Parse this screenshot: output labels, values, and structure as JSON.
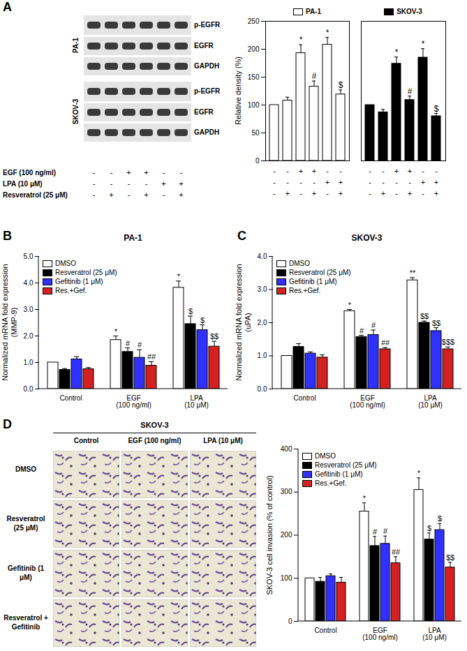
{
  "figure": {
    "panel_labels": [
      "A",
      "B",
      "C",
      "D"
    ],
    "blot": {
      "cell_lines": [
        {
          "name": "PA-1",
          "rows": [
            "p-EGFR",
            "EGFR",
            "GAPDH"
          ]
        },
        {
          "name": "SKOV-3",
          "rows": [
            "p-EGFR",
            "EGFR",
            "GAPDH"
          ]
        }
      ]
    },
    "micrographs": {
      "title": "SKOV-3",
      "columns": [
        "Control",
        "EGF (100 ng/ml)",
        "LPA (10 μM)"
      ],
      "rows": [
        "DMSO",
        "Resveratrol (25 μM)",
        "Gefitinib (1 μM)",
        "Resveratrol + Gefitinib"
      ]
    }
  },
  "chart_data": [
    {
      "type": "bar",
      "ylabel": "Relative density (%)",
      "categories": [
        null,
        null,
        null,
        null,
        null,
        null
      ],
      "ylim": [
        0,
        250
      ],
      "yticks": [
        0,
        50,
        100,
        150,
        200,
        250
      ],
      "conditions": [
        {
          "label": "EGF (100 ng/ml)",
          "signs": [
            "-",
            "-",
            "+",
            "+",
            "-",
            "-"
          ]
        },
        {
          "label": "LPA (10 μM)",
          "signs": [
            "-",
            "-",
            "-",
            "-",
            "+",
            "+"
          ]
        },
        {
          "label": "Resveratrol (25 μM)",
          "signs": [
            "-",
            "+",
            "-",
            "+",
            "-",
            "+"
          ]
        }
      ],
      "series": [
        {
          "name": "PA-1",
          "color": "#ffffff",
          "values": [
            100,
            108,
            193,
            133,
            208,
            119
          ],
          "errors": [
            0,
            6,
            15,
            10,
            13,
            8
          ],
          "significance": [
            null,
            null,
            "*",
            "#",
            "*",
            "$"
          ]
        },
        {
          "name": "SKOV-3",
          "color": "#000000",
          "values": [
            100,
            87,
            174,
            109,
            185,
            80
          ],
          "errors": [
            0,
            5,
            12,
            7,
            16,
            5
          ],
          "significance": [
            null,
            null,
            "*",
            "#",
            "*",
            "$"
          ]
        }
      ]
    },
    {
      "type": "bar",
      "title": "PA-1",
      "ylabel": "Normalized mRNA fold expression (MMP-9)",
      "categories": [
        "Control",
        "EGF (100 ng/ml)",
        "LPA (10 μM)"
      ],
      "ylim": [
        0,
        5
      ],
      "yticks": [
        0,
        1,
        2,
        3,
        4,
        5
      ],
      "legend": "top-left",
      "series": [
        {
          "name": "DMSO",
          "color": "#ffffff",
          "values": [
            1,
            1.85,
            3.82
          ],
          "errors": [
            0,
            0.15,
            0.25
          ],
          "significance": [
            null,
            "*",
            "*"
          ]
        },
        {
          "name": "Resveratrol (25 μM)",
          "color": "#000000",
          "values": [
            0.72,
            1.4,
            2.45
          ],
          "errors": [
            0.05,
            0.15,
            0.3
          ],
          "significance": [
            null,
            "#",
            "$"
          ]
        },
        {
          "name": "Gefitinib (1 μM)",
          "color": "#3030ff",
          "values": [
            1.12,
            1.18,
            2.22
          ],
          "errors": [
            0.1,
            0.3,
            0.2
          ],
          "significance": [
            null,
            "#",
            "$"
          ]
        },
        {
          "name": "Res.+Gef.",
          "color": "#d42020",
          "values": [
            0.75,
            0.88,
            1.6
          ],
          "errors": [
            0.06,
            0.15,
            0.2
          ],
          "significance": [
            null,
            "##",
            "$$"
          ]
        }
      ]
    },
    {
      "type": "bar",
      "title": "SKOV-3",
      "ylabel": "Normalized mRNA fold expression (uPA)",
      "categories": [
        "Control",
        "EGF (100 ng/ml)",
        "LPA (10 μM)"
      ],
      "ylim": [
        0,
        4
      ],
      "yticks": [
        0,
        1,
        2,
        3,
        4
      ],
      "legend": "top-left",
      "series": [
        {
          "name": "DMSO",
          "color": "#ffffff",
          "values": [
            1,
            2.35,
            3.28
          ],
          "errors": [
            0,
            0.05,
            0.08
          ],
          "significance": [
            null,
            "*",
            "**"
          ]
        },
        {
          "name": "Resveratrol (25 μM)",
          "color": "#000000",
          "values": [
            1.27,
            1.57,
            2.0
          ],
          "errors": [
            0.1,
            0.05,
            0.05
          ],
          "significance": [
            null,
            "#",
            "$$"
          ]
        },
        {
          "name": "Gefitinib (1 μM)",
          "color": "#3030ff",
          "values": [
            1.07,
            1.63,
            1.75
          ],
          "errors": [
            0.05,
            0.15,
            0.1
          ],
          "significance": [
            null,
            "#",
            "$$"
          ]
        },
        {
          "name": "Res.+Gef.",
          "color": "#d42020",
          "values": [
            0.95,
            1.2,
            1.2
          ],
          "errors": [
            0.08,
            0.05,
            0.07
          ],
          "significance": [
            null,
            "##",
            "$$$"
          ]
        }
      ]
    },
    {
      "type": "bar",
      "ylabel": "SKOV-3 cell invasion (% of control)",
      "categories": [
        "Control",
        "EGF (100 ng/ml)",
        "LPA (10 μM)"
      ],
      "ylim": [
        0,
        400
      ],
      "yticks": [
        0,
        100,
        200,
        300,
        400
      ],
      "legend": "top-left",
      "series": [
        {
          "name": "DMSO",
          "color": "#ffffff",
          "values": [
            100,
            255,
            305
          ],
          "errors": [
            0,
            20,
            28
          ],
          "significance": [
            null,
            "*",
            "*"
          ]
        },
        {
          "name": "Resveratrol (25 μM)",
          "color": "#000000",
          "values": [
            92,
            175,
            190
          ],
          "errors": [
            10,
            22,
            15
          ],
          "significance": [
            null,
            "#",
            "$"
          ]
        },
        {
          "name": "Gefitinib (1 μM)",
          "color": "#3030ff",
          "values": [
            105,
            180,
            212
          ],
          "errors": [
            5,
            18,
            15
          ],
          "significance": [
            null,
            "#",
            "$"
          ]
        },
        {
          "name": "Res.+Gef.",
          "color": "#d42020",
          "values": [
            90,
            135,
            125
          ],
          "errors": [
            12,
            15,
            12
          ],
          "significance": [
            null,
            "##",
            "$$"
          ]
        }
      ]
    }
  ]
}
